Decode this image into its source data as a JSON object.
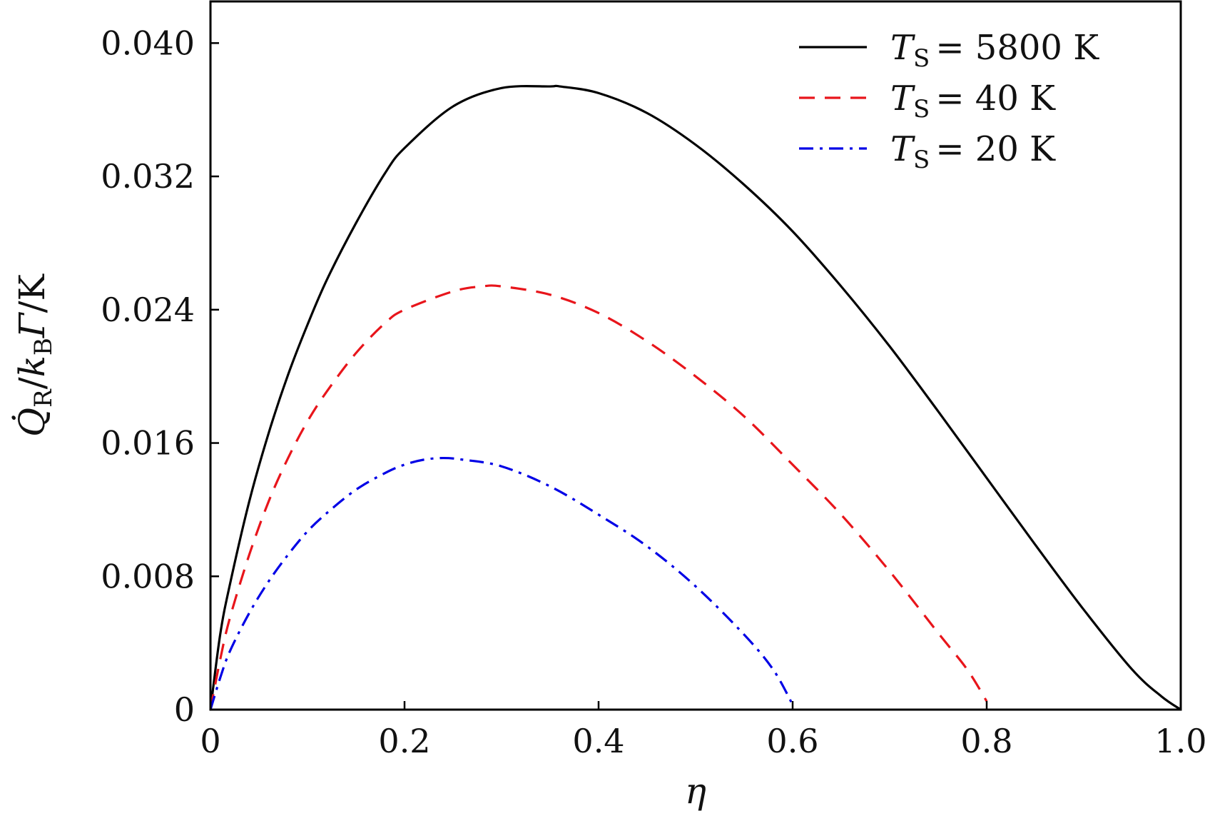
{
  "chart_data": {
    "type": "line",
    "title": "",
    "xlabel": "η",
    "ylabel": "Q̇_R / k_B Γ / K",
    "xlim": [
      0,
      1.0
    ],
    "ylim": [
      0,
      0.0425
    ],
    "x_ticks": [
      0,
      0.2,
      0.4,
      0.6,
      0.8,
      1.0
    ],
    "x_tick_labels": [
      "0",
      "0.2",
      "0.4",
      "0.6",
      "0.8",
      "1.0"
    ],
    "y_ticks": [
      0,
      0.008,
      0.016,
      0.024,
      0.032,
      0.04
    ],
    "y_tick_labels": [
      "0",
      "0.008",
      "0.016",
      "0.024",
      "0.032",
      "0.040"
    ],
    "grid": false,
    "legend_position": "top-right",
    "series": [
      {
        "name": "T_S = 5800 K",
        "legend_label": "= 5800 K",
        "color": "#000000",
        "dash": "solid",
        "x": [
          0,
          0.01,
          0.02,
          0.04,
          0.06,
          0.08,
          0.1,
          0.12,
          0.15,
          0.18,
          0.2,
          0.25,
          0.3,
          0.35,
          0.36,
          0.4,
          0.45,
          0.5,
          0.55,
          0.6,
          0.65,
          0.7,
          0.75,
          0.8,
          0.85,
          0.9,
          0.95,
          0.98,
          1.0
        ],
        "values": [
          0,
          0.0045,
          0.0075,
          0.0125,
          0.0166,
          0.0201,
          0.0231,
          0.0258,
          0.0292,
          0.0322,
          0.0337,
          0.0362,
          0.0373,
          0.0374,
          0.0374,
          0.037,
          0.0358,
          0.0339,
          0.0315,
          0.0287,
          0.0254,
          0.0218,
          0.0179,
          0.0139,
          0.0099,
          0.006,
          0.0024,
          0.0008,
          0
        ]
      },
      {
        "name": "T_S = 40 K",
        "legend_label": "= 40 K",
        "color": "#e8151b",
        "dash": "dashed",
        "x": [
          0,
          0.01,
          0.02,
          0.04,
          0.06,
          0.08,
          0.1,
          0.12,
          0.15,
          0.18,
          0.2,
          0.25,
          0.28,
          0.3,
          0.35,
          0.4,
          0.45,
          0.5,
          0.55,
          0.6,
          0.65,
          0.7,
          0.75,
          0.78,
          0.8
        ],
        "values": [
          0,
          0.003,
          0.0055,
          0.0093,
          0.0125,
          0.0151,
          0.0173,
          0.0191,
          0.0214,
          0.0232,
          0.024,
          0.0251,
          0.0254,
          0.0254,
          0.0249,
          0.0238,
          0.0221,
          0.02,
          0.0176,
          0.0147,
          0.0117,
          0.0083,
          0.0046,
          0.0024,
          0.0005
        ]
      },
      {
        "name": "T_S = 20 K",
        "legend_label": "= 20 K",
        "color": "#0000e6",
        "dash": "dashdot",
        "x": [
          0,
          0.01,
          0.02,
          0.04,
          0.06,
          0.08,
          0.1,
          0.12,
          0.15,
          0.18,
          0.2,
          0.22,
          0.24,
          0.26,
          0.3,
          0.35,
          0.4,
          0.45,
          0.5,
          0.55,
          0.58,
          0.6
        ],
        "values": [
          0,
          0.0019,
          0.0035,
          0.0058,
          0.0077,
          0.0093,
          0.0107,
          0.0118,
          0.0132,
          0.0142,
          0.0147,
          0.015,
          0.0151,
          0.015,
          0.0146,
          0.0134,
          0.0117,
          0.0098,
          0.0074,
          0.0045,
          0.0024,
          0.0003
        ]
      }
    ]
  }
}
